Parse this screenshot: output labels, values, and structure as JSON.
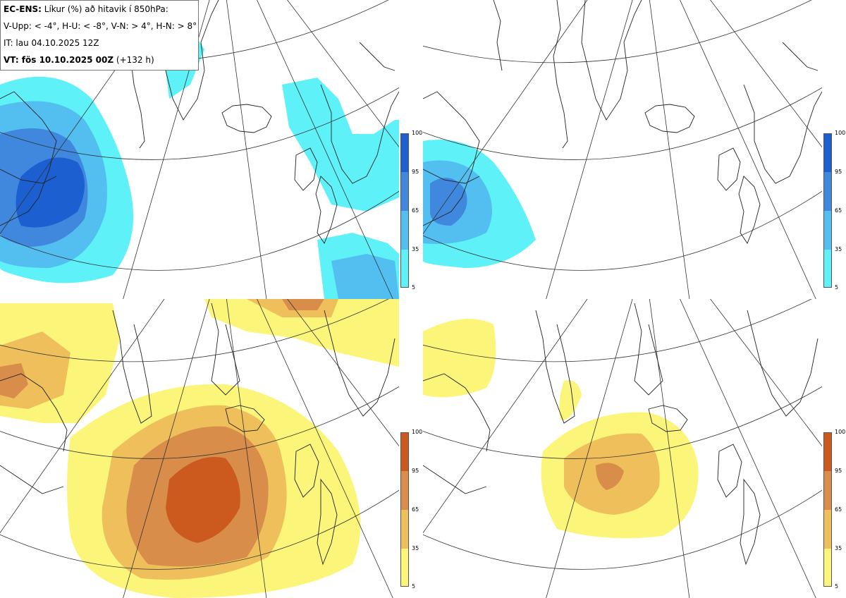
{
  "info": {
    "line1_bold": "EC-ENS:",
    "line1_rest": " Líkur (%) að hitavik í 850hPa:",
    "line2": "V-Upp: < -4°, H-U: < -8°, V-N: > 4°, H-N: > 8°",
    "line3": "IT: lau 04.10.2025 12Z",
    "line4_bold": "VT: fös 10.10.2025 00Z",
    "line4_rest": " (+132 h)"
  },
  "colorbar": {
    "ticks": [
      "100",
      "95",
      "65",
      "35",
      "5"
    ],
    "cold_colors": [
      "#1b5fd1",
      "#3f88dd",
      "#53bff0",
      "#5ef2f8",
      "#c9fbfd"
    ],
    "warm_colors": [
      "#cc5a1e",
      "#d88d4a",
      "#eebf5a",
      "#fbf57a",
      "#fffbb0"
    ]
  },
  "panels": [
    {
      "id": "upper-left",
      "label": "V-Upp"
    },
    {
      "id": "upper-right",
      "label": "H-U"
    },
    {
      "id": "lower-left",
      "label": "V-N"
    },
    {
      "id": "lower-right",
      "label": "H-N"
    }
  ]
}
